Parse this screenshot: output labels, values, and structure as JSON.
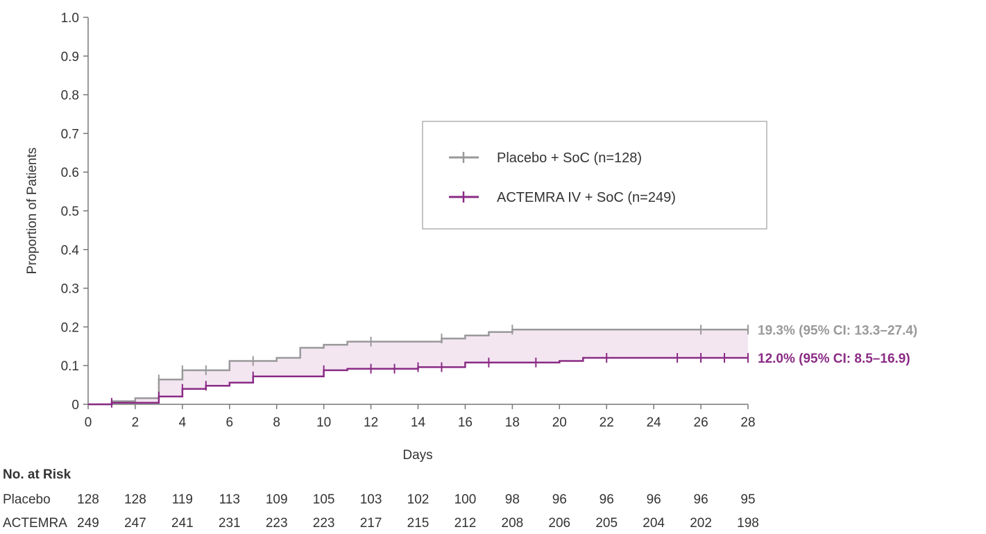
{
  "chart_data": {
    "type": "line",
    "subtype": "kaplan-meier-step",
    "xlabel": "Days",
    "ylabel": "Proportion of Patients",
    "xlim": [
      0,
      28
    ],
    "ylim": [
      0,
      1.0
    ],
    "x_ticks": [
      "0",
      "2",
      "4",
      "6",
      "8",
      "10",
      "12",
      "14",
      "16",
      "18",
      "20",
      "22",
      "24",
      "26",
      "28"
    ],
    "y_ticks": [
      "0",
      "0.1",
      "0.2",
      "0.3",
      "0.4",
      "0.5",
      "0.6",
      "0.7",
      "0.8",
      "0.9",
      "1.0"
    ],
    "grid": false,
    "legend_position": "top-right",
    "shaded_between_series": true,
    "shade_color": "#f3e6f1",
    "series": [
      {
        "name": "Placebo + SoC (n=128)",
        "color": "#999999",
        "steps": [
          [
            0,
            0
          ],
          [
            1,
            0.008
          ],
          [
            2,
            0.016
          ],
          [
            3,
            0.064
          ],
          [
            4,
            0.088
          ],
          [
            6,
            0.112
          ],
          [
            8,
            0.12
          ],
          [
            9,
            0.146
          ],
          [
            10,
            0.154
          ],
          [
            11,
            0.162
          ],
          [
            15,
            0.17
          ],
          [
            16,
            0.178
          ],
          [
            17,
            0.187
          ],
          [
            18,
            0.193
          ],
          [
            28,
            0.193
          ]
        ],
        "censor_x": [
          3,
          4,
          5,
          7,
          12,
          15,
          18,
          26,
          28
        ],
        "end_label": "19.3% (95% CI: 13.3–27.4)"
      },
      {
        "name": "ACTEMRA IV + SoC (n=249)",
        "color": "#8a2b85",
        "steps": [
          [
            0,
            0
          ],
          [
            1,
            0.004
          ],
          [
            3,
            0.02
          ],
          [
            4,
            0.04
          ],
          [
            5,
            0.048
          ],
          [
            6,
            0.056
          ],
          [
            7,
            0.072
          ],
          [
            10,
            0.088
          ],
          [
            11,
            0.092
          ],
          [
            14,
            0.096
          ],
          [
            16,
            0.108
          ],
          [
            20,
            0.112
          ],
          [
            21,
            0.12
          ],
          [
            28,
            0.12
          ]
        ],
        "censor_x": [
          1,
          3,
          4,
          5,
          7,
          10,
          12,
          13,
          14,
          15,
          17,
          19,
          22,
          25,
          26,
          27,
          28
        ],
        "end_label": "12.0% (95% CI: 8.5–16.9)"
      }
    ],
    "risk_table": {
      "title": "No. at Risk",
      "rows": [
        {
          "label": "Placebo",
          "values": [
            "128",
            "128",
            "119",
            "113",
            "109",
            "105",
            "103",
            "102",
            "100",
            "98",
            "96",
            "96",
            "96",
            "96",
            "95"
          ]
        },
        {
          "label": "ACTEMRA",
          "values": [
            "249",
            "247",
            "241",
            "231",
            "223",
            "223",
            "217",
            "215",
            "212",
            "208",
            "206",
            "205",
            "204",
            "202",
            "198"
          ]
        }
      ]
    }
  }
}
